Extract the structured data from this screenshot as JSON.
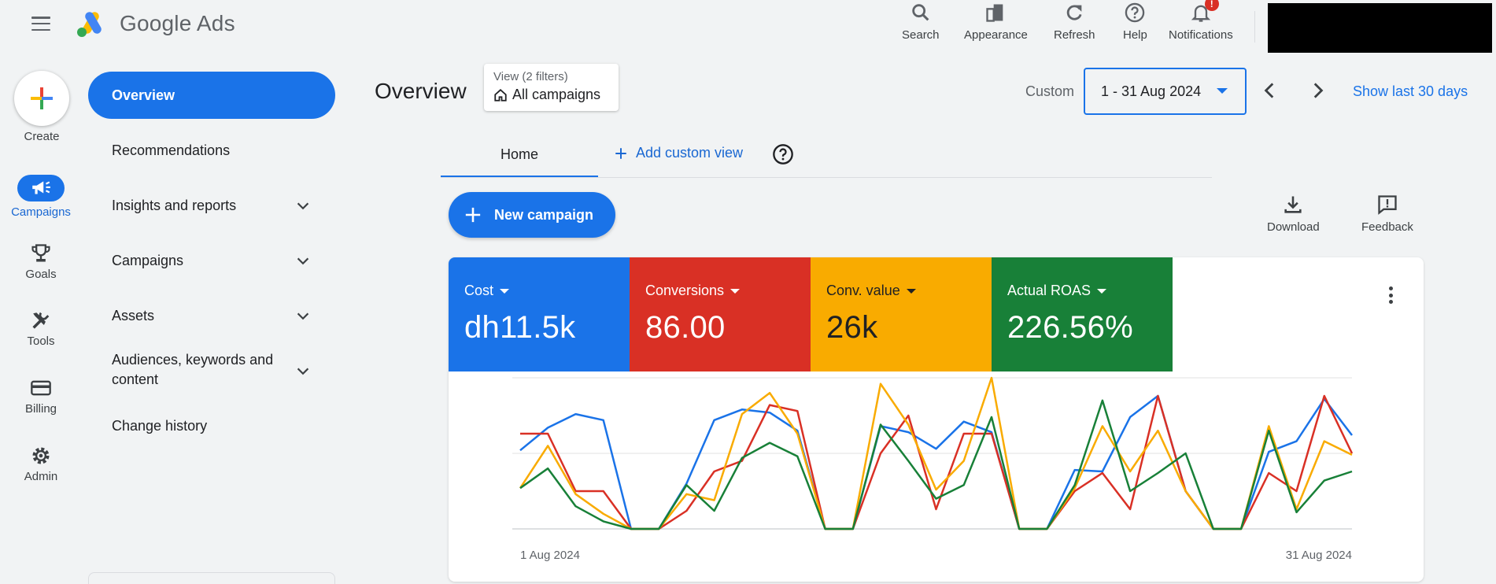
{
  "app": {
    "name": "Google Ads"
  },
  "toolbar": {
    "search": "Search",
    "appearance": "Appearance",
    "refresh": "Refresh",
    "help": "Help",
    "notifications": "Notifications",
    "notifications_badge": "!"
  },
  "rail": {
    "create": "Create",
    "campaigns": "Campaigns",
    "goals": "Goals",
    "tools": "Tools",
    "billing": "Billing",
    "admin": "Admin"
  },
  "nav": {
    "overview": "Overview",
    "recommendations": "Recommendations",
    "insights": "Insights and reports",
    "campaigns": "Campaigns",
    "assets": "Assets",
    "audiences_line1": "Audiences, keywords and",
    "audiences_line2": "content",
    "change_history": "Change history"
  },
  "header": {
    "title": "Overview",
    "view_filters": "View (2 filters)",
    "view_name": "All campaigns",
    "custom": "Custom",
    "date_range": "1 - 31 Aug 2024",
    "show_last": "Show last 30 days"
  },
  "tabs": {
    "home": "Home",
    "add_custom": "Add custom view"
  },
  "actions": {
    "new_campaign": "New campaign",
    "download": "Download",
    "feedback": "Feedback"
  },
  "metrics": [
    {
      "label": "Cost",
      "value": "dh11.5k",
      "color": "#1a73e8"
    },
    {
      "label": "Conversions",
      "value": "86.00",
      "color": "#d93025"
    },
    {
      "label": "Conv. value",
      "value": "26k",
      "color": "#f9ab00"
    },
    {
      "label": "Actual ROAS",
      "value": "226.56%",
      "color": "#188038"
    }
  ],
  "chart_data": {
    "type": "line",
    "x_start_label": "1 Aug 2024",
    "x_end_label": "31 Aug 2024",
    "grid": true,
    "ylim": [
      0,
      1
    ],
    "series": [
      {
        "name": "Cost",
        "color": "#1a73e8",
        "values": [
          0.52,
          0.67,
          0.76,
          0.72,
          0,
          0,
          0.3,
          0.72,
          0.79,
          0.77,
          0.65,
          0,
          0,
          0.68,
          0.64,
          0.53,
          0.71,
          0.64,
          0,
          0,
          0.39,
          0.38,
          0.74,
          0.88,
          0.25,
          0,
          0,
          0.51,
          0.58,
          0.86,
          0.62
        ]
      },
      {
        "name": "Conversions",
        "color": "#d93025",
        "values": [
          0.63,
          0.63,
          0.25,
          0.25,
          0,
          0,
          0.12,
          0.38,
          0.45,
          0.82,
          0.78,
          0,
          0,
          0.5,
          0.75,
          0.13,
          0.63,
          0.63,
          0,
          0,
          0.25,
          0.37,
          0.13,
          0.88,
          0.25,
          0,
          0,
          0.37,
          0.25,
          0.88,
          0.5
        ]
      },
      {
        "name": "Conv. value",
        "color": "#f9ab00",
        "values": [
          0.27,
          0.55,
          0.23,
          0.1,
          0,
          0,
          0.23,
          0.19,
          0.76,
          0.9,
          0.63,
          0,
          0,
          0.96,
          0.69,
          0.26,
          0.45,
          1.0,
          0,
          0,
          0.27,
          0.68,
          0.38,
          0.65,
          0.25,
          0,
          0,
          0.68,
          0.13,
          0.58,
          0.49
        ]
      },
      {
        "name": "Actual ROAS",
        "color": "#188038",
        "values": [
          0.27,
          0.4,
          0.15,
          0.05,
          0,
          0,
          0.29,
          0.12,
          0.47,
          0.57,
          0.48,
          0,
          0,
          0.69,
          0.45,
          0.2,
          0.29,
          0.74,
          0,
          0,
          0.29,
          0.85,
          0.25,
          0.37,
          0.5,
          0,
          0,
          0.65,
          0.11,
          0.32,
          0.38
        ]
      }
    ]
  }
}
